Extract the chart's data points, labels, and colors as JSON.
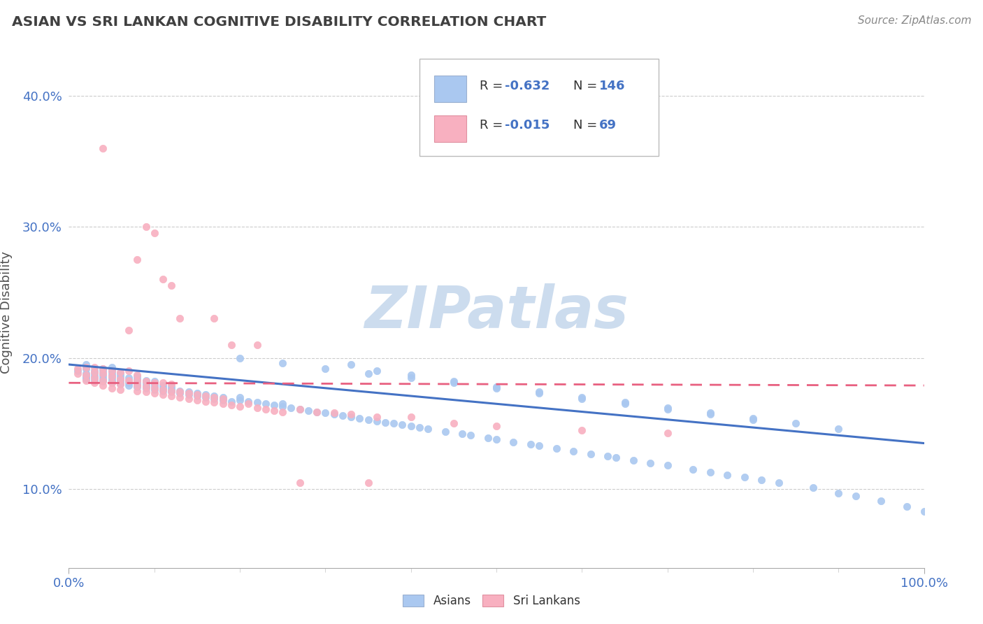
{
  "title": "ASIAN VS SRI LANKAN COGNITIVE DISABILITY CORRELATION CHART",
  "source_text": "Source: ZipAtlas.com",
  "ylabel": "Cognitive Disability",
  "xlim": [
    0.0,
    1.0
  ],
  "ylim": [
    0.04,
    0.43
  ],
  "yticks": [
    0.1,
    0.2,
    0.3,
    0.4
  ],
  "ytick_labels": [
    "10.0%",
    "20.0%",
    "30.0%",
    "40.0%"
  ],
  "xtick_labels": [
    "0.0%",
    "100.0%"
  ],
  "asian_color": "#aac8f0",
  "srilanka_color": "#f8b0c0",
  "asian_line_color": "#4472c4",
  "srilanka_line_color": "#e86080",
  "title_color": "#404040",
  "axis_color": "#4472c4",
  "watermark_color": "#ccdcee",
  "R_asian": -0.632,
  "N_asian": 146,
  "R_srilanka": -0.015,
  "N_srilanka": 69,
  "asian_trend_x0": 0.0,
  "asian_trend_y0": 0.195,
  "asian_trend_x1": 1.0,
  "asian_trend_y1": 0.135,
  "srilanka_trend_x0": 0.0,
  "srilanka_trend_y0": 0.181,
  "srilanka_trend_x1": 1.0,
  "srilanka_trend_y1": 0.179,
  "asian_scatter_x": [
    0.01,
    0.02,
    0.02,
    0.02,
    0.02,
    0.02,
    0.02,
    0.02,
    0.03,
    0.03,
    0.03,
    0.03,
    0.03,
    0.04,
    0.04,
    0.04,
    0.04,
    0.04,
    0.04,
    0.05,
    0.05,
    0.05,
    0.05,
    0.05,
    0.05,
    0.05,
    0.06,
    0.06,
    0.06,
    0.06,
    0.06,
    0.07,
    0.07,
    0.07,
    0.07,
    0.08,
    0.08,
    0.08,
    0.08,
    0.08,
    0.09,
    0.09,
    0.09,
    0.09,
    0.1,
    0.1,
    0.1,
    0.1,
    0.11,
    0.11,
    0.11,
    0.12,
    0.12,
    0.12,
    0.13,
    0.13,
    0.14,
    0.14,
    0.15,
    0.15,
    0.16,
    0.16,
    0.17,
    0.17,
    0.18,
    0.18,
    0.19,
    0.2,
    0.2,
    0.21,
    0.22,
    0.23,
    0.24,
    0.25,
    0.25,
    0.26,
    0.27,
    0.28,
    0.29,
    0.3,
    0.31,
    0.32,
    0.33,
    0.34,
    0.35,
    0.36,
    0.37,
    0.38,
    0.39,
    0.4,
    0.41,
    0.42,
    0.44,
    0.46,
    0.47,
    0.49,
    0.5,
    0.52,
    0.54,
    0.55,
    0.57,
    0.59,
    0.61,
    0.63,
    0.64,
    0.66,
    0.68,
    0.7,
    0.73,
    0.75,
    0.77,
    0.79,
    0.81,
    0.83,
    0.87,
    0.9,
    0.92,
    0.95,
    0.98,
    1.0,
    0.33,
    0.36,
    0.4,
    0.45,
    0.5,
    0.55,
    0.6,
    0.65,
    0.7,
    0.75,
    0.8,
    0.85,
    0.9,
    0.2,
    0.25,
    0.3,
    0.35,
    0.4,
    0.45,
    0.5,
    0.55,
    0.6,
    0.65,
    0.7,
    0.75,
    0.8
  ],
  "asian_scatter_y": [
    0.19,
    0.185,
    0.187,
    0.188,
    0.186,
    0.184,
    0.192,
    0.195,
    0.183,
    0.185,
    0.188,
    0.19,
    0.186,
    0.182,
    0.184,
    0.186,
    0.188,
    0.19,
    0.192,
    0.181,
    0.183,
    0.185,
    0.187,
    0.189,
    0.191,
    0.193,
    0.18,
    0.182,
    0.184,
    0.186,
    0.188,
    0.179,
    0.181,
    0.183,
    0.185,
    0.178,
    0.18,
    0.182,
    0.184,
    0.186,
    0.177,
    0.179,
    0.181,
    0.183,
    0.176,
    0.178,
    0.18,
    0.182,
    0.175,
    0.177,
    0.179,
    0.174,
    0.176,
    0.178,
    0.173,
    0.175,
    0.172,
    0.174,
    0.171,
    0.173,
    0.17,
    0.172,
    0.169,
    0.171,
    0.168,
    0.17,
    0.167,
    0.168,
    0.17,
    0.167,
    0.166,
    0.165,
    0.164,
    0.163,
    0.165,
    0.162,
    0.161,
    0.16,
    0.159,
    0.158,
    0.157,
    0.156,
    0.155,
    0.154,
    0.153,
    0.152,
    0.151,
    0.15,
    0.149,
    0.148,
    0.147,
    0.146,
    0.144,
    0.142,
    0.141,
    0.139,
    0.138,
    0.136,
    0.134,
    0.133,
    0.131,
    0.129,
    0.127,
    0.125,
    0.124,
    0.122,
    0.12,
    0.118,
    0.115,
    0.113,
    0.111,
    0.109,
    0.107,
    0.105,
    0.101,
    0.097,
    0.095,
    0.091,
    0.087,
    0.083,
    0.195,
    0.19,
    0.187,
    0.182,
    0.178,
    0.174,
    0.17,
    0.166,
    0.162,
    0.158,
    0.154,
    0.15,
    0.146,
    0.2,
    0.196,
    0.192,
    0.188,
    0.185,
    0.181,
    0.177,
    0.173,
    0.169,
    0.165,
    0.161,
    0.157,
    0.153
  ],
  "srilanka_scatter_x": [
    0.01,
    0.01,
    0.02,
    0.02,
    0.02,
    0.03,
    0.03,
    0.03,
    0.03,
    0.04,
    0.04,
    0.04,
    0.04,
    0.05,
    0.05,
    0.05,
    0.05,
    0.06,
    0.06,
    0.06,
    0.06,
    0.07,
    0.07,
    0.07,
    0.08,
    0.08,
    0.08,
    0.08,
    0.09,
    0.09,
    0.09,
    0.1,
    0.1,
    0.1,
    0.11,
    0.11,
    0.11,
    0.12,
    0.12,
    0.12,
    0.13,
    0.13,
    0.14,
    0.14,
    0.15,
    0.15,
    0.16,
    0.16,
    0.17,
    0.17,
    0.18,
    0.18,
    0.19,
    0.2,
    0.21,
    0.22,
    0.23,
    0.24,
    0.25,
    0.27,
    0.29,
    0.31,
    0.33,
    0.36,
    0.4,
    0.45,
    0.5,
    0.6,
    0.7
  ],
  "srilanka_scatter_y": [
    0.188,
    0.192,
    0.183,
    0.187,
    0.193,
    0.181,
    0.185,
    0.189,
    0.193,
    0.179,
    0.183,
    0.188,
    0.192,
    0.177,
    0.181,
    0.186,
    0.19,
    0.176,
    0.18,
    0.184,
    0.189,
    0.221,
    0.183,
    0.19,
    0.175,
    0.179,
    0.183,
    0.187,
    0.174,
    0.178,
    0.182,
    0.173,
    0.177,
    0.181,
    0.172,
    0.176,
    0.181,
    0.171,
    0.175,
    0.18,
    0.17,
    0.174,
    0.169,
    0.173,
    0.168,
    0.172,
    0.167,
    0.171,
    0.166,
    0.17,
    0.165,
    0.169,
    0.164,
    0.163,
    0.165,
    0.162,
    0.161,
    0.16,
    0.159,
    0.161,
    0.159,
    0.158,
    0.157,
    0.155,
    0.155,
    0.15,
    0.148,
    0.145,
    0.143
  ],
  "srilanka_outlier_x": [
    0.04,
    0.08,
    0.09,
    0.1,
    0.11,
    0.12,
    0.13,
    0.17,
    0.19,
    0.22,
    0.27,
    0.35
  ],
  "srilanka_outlier_y": [
    0.36,
    0.275,
    0.3,
    0.295,
    0.26,
    0.255,
    0.23,
    0.23,
    0.21,
    0.21,
    0.105,
    0.105
  ]
}
